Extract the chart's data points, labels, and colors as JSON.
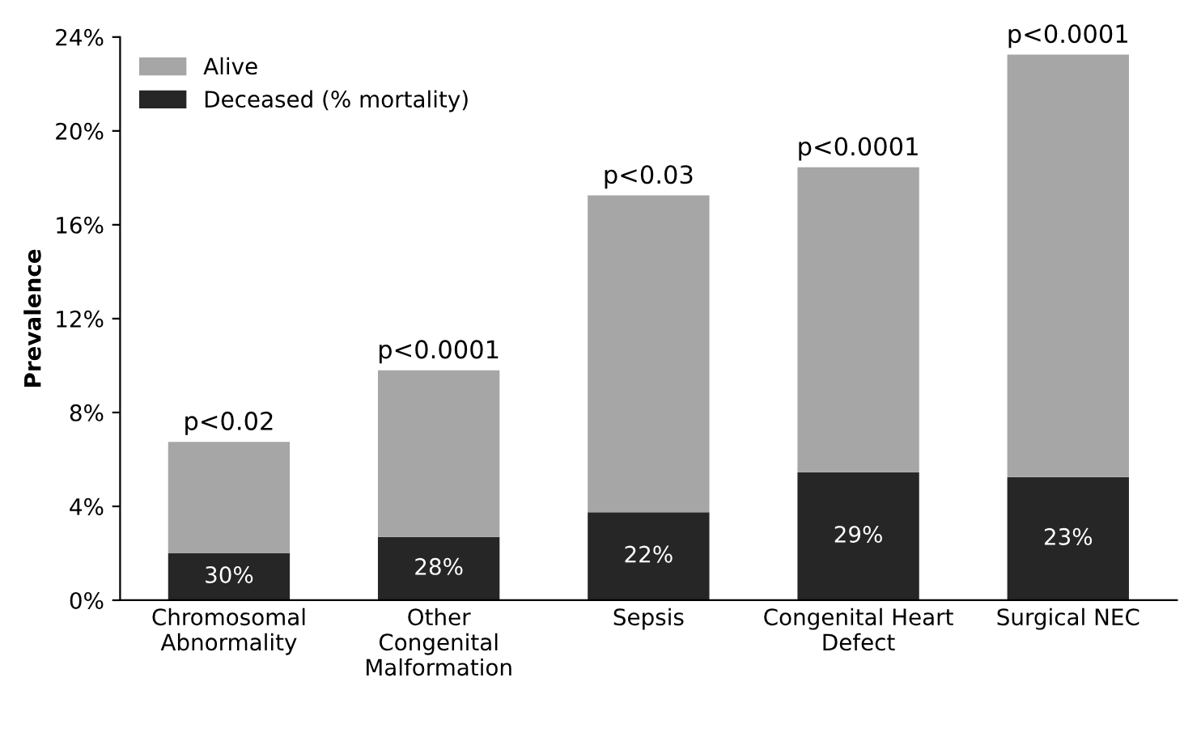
{
  "chart_data": {
    "type": "bar",
    "stacked": true,
    "ylabel": "Prevalence",
    "categories": [
      "Chromosomal\nAbnormality",
      "Other\nCongenital\nMalformation",
      "Sepsis",
      "Congenital Heart\nDefect",
      "Surgical NEC"
    ],
    "series": [
      {
        "name": "Deceased (% mortality)",
        "color": "#262626",
        "values": [
          2.0,
          2.7,
          3.75,
          5.45,
          5.25
        ]
      },
      {
        "name": "Alive",
        "color": "#a6a6a6",
        "values": [
          4.75,
          7.1,
          13.5,
          13.0,
          18.0
        ]
      }
    ],
    "ylim": [
      0,
      24
    ],
    "yticks": [
      {
        "value": 0,
        "label": "0%"
      },
      {
        "value": 4,
        "label": "4%"
      },
      {
        "value": 8,
        "label": "8%"
      },
      {
        "value": 12,
        "label": "12%"
      },
      {
        "value": 16,
        "label": "16%"
      },
      {
        "value": 20,
        "label": "20%"
      },
      {
        "value": 24,
        "label": "24%"
      }
    ],
    "annotations": [
      {
        "text": "30%",
        "x": "Chromosomal\nAbnormality",
        "y": 2.0
      },
      {
        "text": "28%",
        "x": "Other\nCongenital\nMalformation",
        "y": 2.7
      },
      {
        "text": "22%",
        "x": "Sepsis",
        "y": 3.75
      },
      {
        "text": "29%",
        "x": "Congenital Heart\nDefect",
        "y": 5.45
      },
      {
        "text": "23%",
        "x": "Surgical NEC",
        "y": 5.25
      },
      {
        "text": "p<0.02",
        "x": "Chromosomal\nAbnormality",
        "y": 6.75
      },
      {
        "text": "p<0.0001",
        "x": "Other\nCongenital\nMalformation",
        "y": 9.8
      },
      {
        "text": "p<0.03",
        "x": "Sepsis",
        "y": 17.25
      },
      {
        "text": "p<0.0001",
        "x": "Congenital Heart\nDefect",
        "y": 18.45
      },
      {
        "text": "p<0.0001",
        "x": "Surgical NEC",
        "y": 23.25
      }
    ],
    "legend": "top left",
    "grid": false
  }
}
